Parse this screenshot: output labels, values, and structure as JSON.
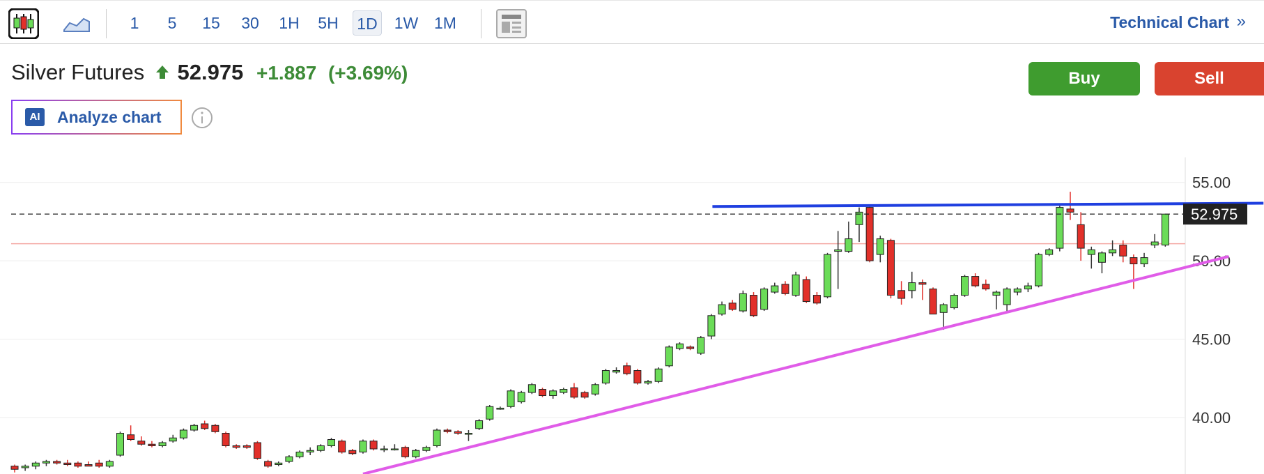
{
  "toolbar": {
    "intervals": [
      "1",
      "5",
      "15",
      "30",
      "1H",
      "5H",
      "1D",
      "1W",
      "1M"
    ],
    "active_interval": 6,
    "link": "Technical Chart",
    "link_icon": "»"
  },
  "header": {
    "instrument": "Silver Futures",
    "price": 52.975,
    "change": "+1.887",
    "change_pct": "(+3.69%)",
    "buy": "Buy",
    "sell": "Sell",
    "ai_badge": "AI",
    "analyze": "Analyze chart"
  },
  "chart_data": {
    "type": "candlestick",
    "open": [
      36.9,
      36.8,
      36.9,
      37.1,
      37.2,
      37.1,
      37.1,
      37.0,
      37.1,
      36.9,
      37.6,
      38.9,
      38.5,
      38.3,
      38.2,
      38.5,
      38.7,
      39.2,
      39.6,
      39.5,
      39.0,
      38.2,
      38.2,
      38.4,
      37.2,
      37.0,
      37.2,
      37.5,
      37.8,
      37.9,
      38.2,
      38.5,
      37.9,
      37.8,
      38.5,
      38.0,
      38.0,
      38.1,
      37.5,
      37.9,
      38.2,
      39.2,
      39.1,
      39.0,
      39.3,
      39.9,
      40.6,
      40.7,
      41.0,
      41.6,
      41.8,
      41.4,
      41.6,
      41.9,
      41.6,
      41.5,
      42.2,
      42.9,
      43.3,
      43.0,
      42.2,
      42.3,
      43.3,
      44.4,
      44.5,
      44.1,
      45.2,
      46.6,
      47.3,
      46.8,
      47.8,
      46.9,
      48.0,
      48.5,
      47.8,
      48.8,
      47.8,
      47.7,
      50.6,
      50.6,
      52.3,
      53.4,
      50.4,
      51.3,
      48.1,
      48.1,
      48.6,
      48.2,
      46.7,
      47.0,
      47.8,
      49.0,
      48.5,
      47.8,
      47.2,
      48.0,
      48.2,
      48.4,
      50.4,
      50.8,
      53.3,
      52.3,
      50.4,
      49.9,
      50.5,
      51.0,
      50.2,
      49.8,
      51.0,
      51.0
    ],
    "high": [
      37.0,
      37.0,
      37.2,
      37.3,
      37.3,
      37.3,
      37.2,
      37.2,
      37.3,
      37.3,
      39.1,
      39.5,
      38.8,
      38.5,
      38.5,
      38.9,
      39.3,
      39.6,
      39.8,
      39.6,
      39.1,
      38.3,
      38.3,
      38.5,
      37.3,
      37.2,
      37.6,
      37.9,
      38.1,
      38.3,
      38.7,
      38.6,
      38.0,
      38.6,
      38.6,
      38.2,
      38.3,
      38.2,
      38.0,
      38.2,
      39.3,
      39.3,
      39.2,
      39.2,
      39.9,
      40.8,
      40.7,
      41.8,
      41.7,
      42.2,
      41.9,
      41.8,
      41.9,
      42.2,
      41.7,
      42.2,
      43.1,
      43.2,
      43.5,
      43.1,
      42.4,
      43.2,
      44.6,
      44.8,
      44.6,
      45.2,
      46.6,
      47.4,
      47.5,
      48.1,
      48.0,
      48.3,
      48.6,
      48.7,
      49.3,
      49.0,
      48.0,
      50.5,
      51.9,
      52.5,
      53.4,
      53.6,
      51.6,
      51.4,
      48.7,
      49.3,
      48.8,
      48.3,
      47.3,
      47.9,
      49.1,
      49.2,
      48.8,
      48.1,
      48.3,
      48.3,
      48.6,
      50.5,
      50.8,
      53.5,
      54.4,
      53.1,
      50.9,
      50.6,
      51.3,
      51.3,
      50.4,
      50.5,
      51.7,
      53.0
    ],
    "low": [
      36.5,
      36.6,
      36.7,
      36.9,
      37.0,
      36.9,
      36.8,
      36.9,
      36.8,
      36.8,
      37.5,
      38.5,
      38.2,
      38.1,
      38.1,
      38.4,
      38.6,
      39.1,
      39.2,
      39.0,
      38.1,
      38.0,
      38.0,
      37.3,
      36.8,
      36.9,
      37.1,
      37.4,
      37.6,
      37.8,
      38.1,
      37.7,
      37.6,
      37.7,
      37.9,
      37.8,
      37.9,
      37.4,
      37.4,
      37.8,
      38.1,
      39.0,
      38.9,
      38.5,
      39.2,
      39.8,
      40.5,
      40.6,
      40.9,
      41.5,
      41.3,
      41.2,
      41.5,
      41.2,
      41.2,
      41.4,
      42.1,
      42.8,
      42.7,
      42.1,
      42.1,
      42.2,
      43.2,
      44.3,
      44.3,
      44.0,
      45.0,
      46.5,
      46.8,
      46.7,
      46.4,
      46.8,
      47.9,
      47.8,
      47.7,
      47.3,
      47.2,
      47.6,
      48.2,
      50.5,
      51.2,
      49.9,
      49.9,
      47.6,
      47.2,
      47.6,
      47.5,
      46.6,
      45.6,
      46.9,
      47.7,
      48.3,
      48.1,
      46.9,
      46.7,
      47.8,
      48.0,
      48.3,
      50.3,
      50.6,
      52.6,
      50.0,
      49.5,
      49.2,
      50.3,
      49.9,
      48.2,
      49.6,
      50.8,
      50.9
    ],
    "close": [
      36.7,
      36.9,
      37.1,
      37.2,
      37.1,
      37.0,
      36.9,
      36.9,
      36.9,
      37.2,
      39.0,
      38.6,
      38.3,
      38.2,
      38.4,
      38.7,
      39.2,
      39.5,
      39.3,
      39.1,
      38.2,
      38.1,
      38.1,
      37.4,
      36.9,
      37.1,
      37.5,
      37.8,
      37.9,
      38.2,
      38.6,
      37.8,
      37.7,
      38.5,
      38.0,
      38.0,
      38.0,
      37.5,
      37.9,
      38.1,
      39.2,
      39.1,
      39.0,
      39.0,
      39.8,
      40.7,
      40.6,
      41.7,
      41.6,
      42.1,
      41.4,
      41.7,
      41.8,
      41.3,
      41.3,
      42.1,
      43.0,
      43.0,
      42.8,
      42.2,
      42.3,
      43.1,
      44.5,
      44.7,
      44.4,
      45.1,
      46.5,
      47.2,
      46.9,
      47.9,
      46.5,
      48.2,
      48.4,
      47.9,
      49.1,
      47.4,
      47.3,
      50.4,
      50.7,
      51.4,
      53.1,
      50.0,
      51.4,
      47.8,
      47.6,
      48.6,
      48.5,
      46.6,
      47.2,
      47.8,
      49.0,
      48.4,
      48.2,
      48.0,
      48.2,
      48.2,
      48.4,
      50.4,
      50.7,
      53.4,
      53.1,
      50.8,
      50.7,
      50.5,
      50.7,
      50.3,
      49.8,
      50.2,
      51.2,
      52.975
    ],
    "up_color": "#6bdc58",
    "down_color": "#e2302a",
    "ylim": [
      36.4,
      56.6
    ],
    "yticks": [
      {
        "value": 40,
        "label": "40.00"
      },
      {
        "value": 45,
        "label": "45.00"
      },
      {
        "value": 50,
        "label": "50.00"
      },
      {
        "value": 55,
        "label": "55.00"
      }
    ],
    "grid": true,
    "last_price": 52.975,
    "prev_close": 51.088,
    "prev_close_color": "#f4a9a4",
    "trendlines": [
      {
        "color": "#1f3fe0",
        "start": [
          66.1,
          53.46
        ],
        "end": [
          118.3,
          53.67
        ]
      },
      {
        "color": "#e05ce8",
        "start": [
          33.0,
          36.4
        ],
        "end": [
          115.0,
          50.27
        ]
      }
    ]
  }
}
